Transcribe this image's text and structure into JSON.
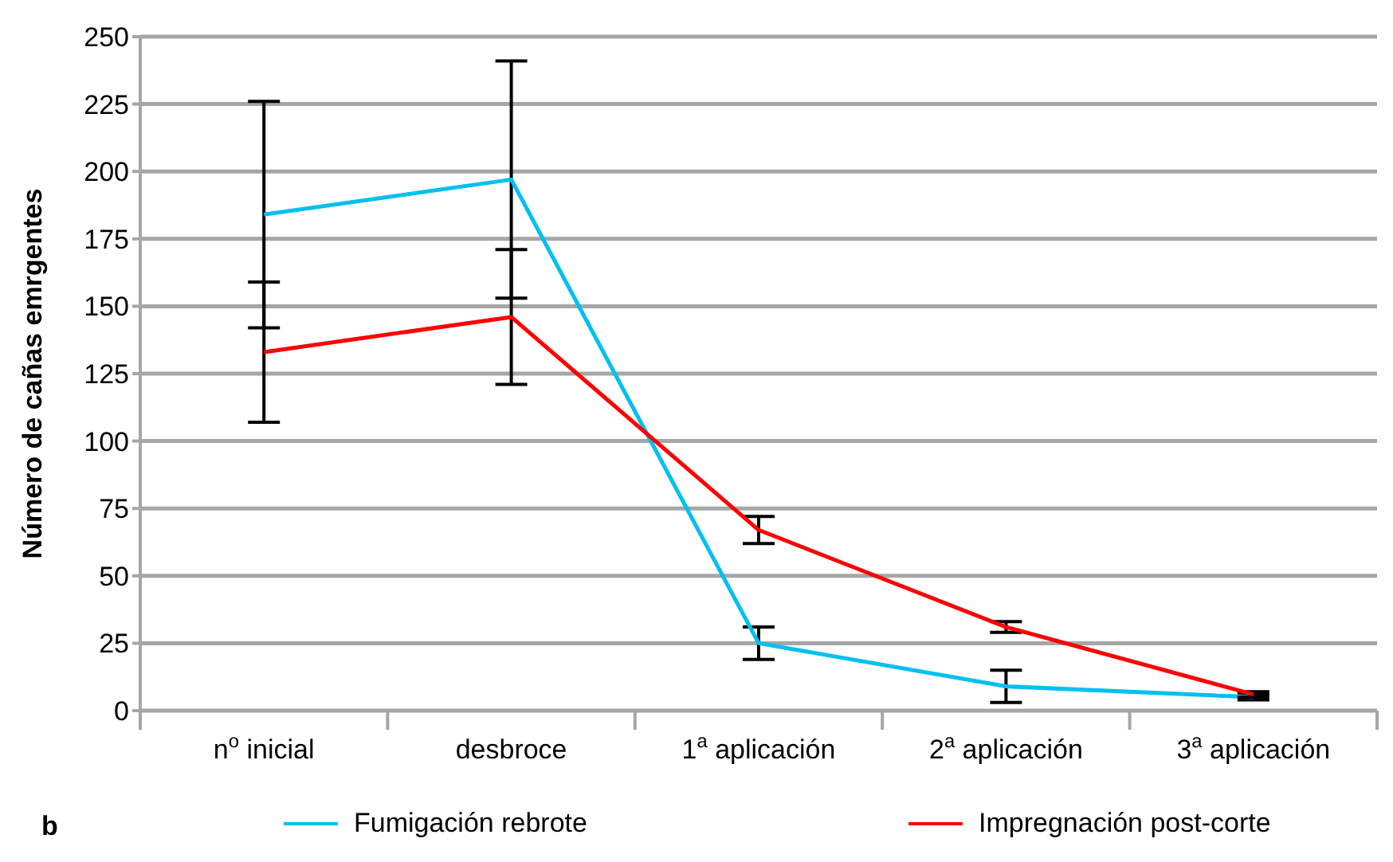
{
  "chart_data": {
    "type": "line",
    "ylabel": "Número de cañas emrgentes",
    "categories": [
      "n$^{o}$ inicial",
      "desbroce",
      "1$^{a}$ aplicación",
      "2$^{a}$ aplicación",
      "3$^{a}$ aplicación"
    ],
    "series": [
      {
        "name": "Fumigación rebrote",
        "color": "#00c0f0",
        "values": [
          184,
          197,
          25,
          9,
          5
        ],
        "errors": [
          42,
          44,
          6,
          6,
          1
        ]
      },
      {
        "name": "Impregnación post-corte",
        "color": "#ff0000",
        "values": [
          133,
          146,
          67,
          31,
          6
        ],
        "errors": [
          26,
          25,
          5,
          2,
          1
        ]
      }
    ],
    "ylim": [
      0,
      250
    ],
    "yticks": [
      0,
      25,
      50,
      75,
      100,
      125,
      150,
      175,
      200,
      225,
      250
    ],
    "grid": "y",
    "legend": "bottom",
    "marker": "none",
    "line_style": "solid",
    "annotations": [
      "b"
    ]
  }
}
